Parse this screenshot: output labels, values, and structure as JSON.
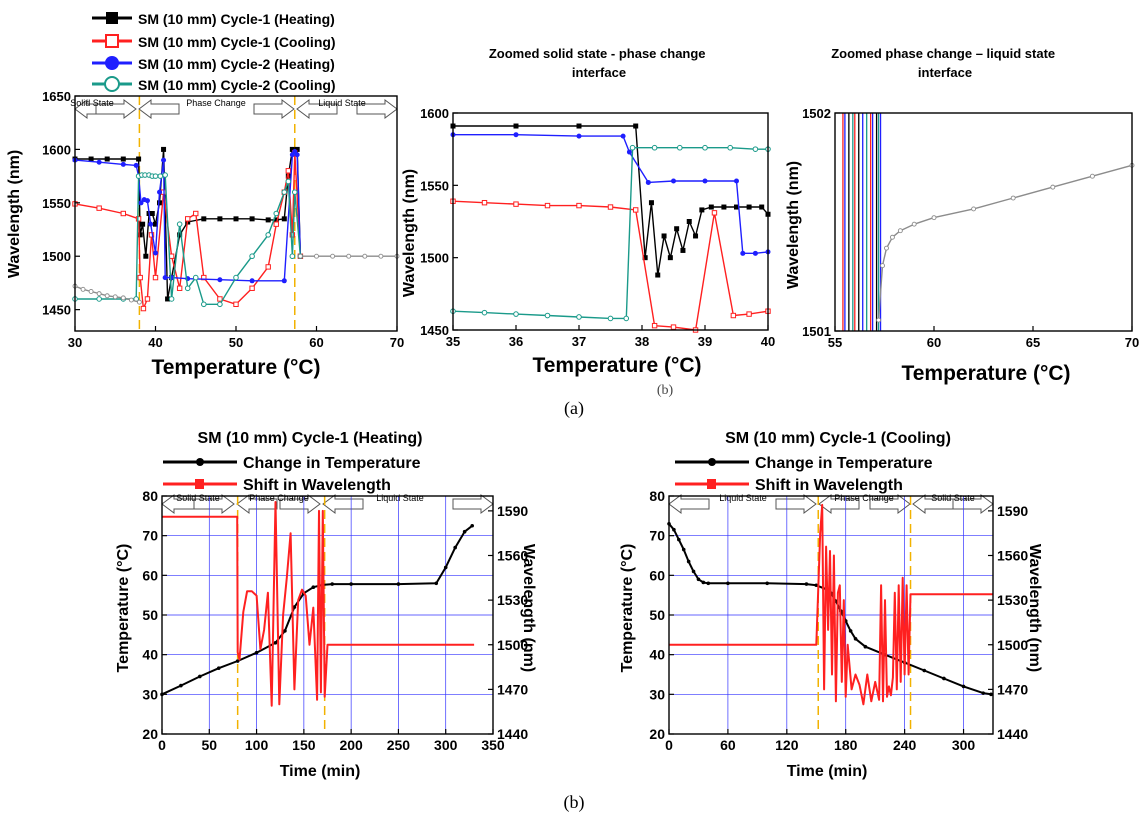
{
  "colors": {
    "black": "#000000",
    "red": "#ff2020",
    "blue": "#1f1fff",
    "teal": "#1a9a8a",
    "grey": "#8c8c8c",
    "yellow": "#f2b200",
    "grid": "#3333ff"
  },
  "panel_captions": {
    "a": "(a)",
    "b": "(b)",
    "stray": "(b)"
  },
  "top_legend": [
    {
      "label": "SM (10 mm) Cycle-1 (Heating)",
      "color": "#000000",
      "marker": "filled-square"
    },
    {
      "label": "SM (10 mm) Cycle-1 (Cooling)",
      "color": "#ff2020",
      "marker": "open-square"
    },
    {
      "label": "SM (10 mm) Cycle-2 (Heating)",
      "color": "#1f1fff",
      "marker": "filled-circle"
    },
    {
      "label": "SM (10 mm) Cycle-2 (Cooling)",
      "color": "#1a9a8a",
      "marker": "open-circle"
    }
  ],
  "chart_data": [
    {
      "id": "a1",
      "type": "line",
      "xlabel": "Temperature (°C)",
      "ylabel": "Wavelength (nm)",
      "xlim": [
        30,
        70
      ],
      "ylim": [
        1430,
        1650
      ],
      "xticks": [
        30,
        40,
        50,
        60,
        70
      ],
      "yticks": [
        1450,
        1500,
        1550,
        1600,
        1650
      ],
      "grid": false,
      "phase_annotations": [
        "Solid State",
        "Phase Change",
        "Liquid State"
      ],
      "phase_boundaries_x": [
        38,
        57.3
      ],
      "series": [
        {
          "name": "SM (10 mm) Cycle-1 (Heating)",
          "color": "#000000",
          "x": [
            30,
            32,
            34,
            36,
            37.9,
            38.1,
            38.4,
            38.8,
            39.2,
            39.6,
            40,
            40.5,
            41,
            41.5,
            42,
            43,
            44,
            46,
            48,
            50,
            52,
            54,
            55,
            56,
            56.5,
            57,
            57.3,
            57.6,
            58
          ],
          "y": [
            1591,
            1591,
            1591,
            1591,
            1591,
            1520,
            1530,
            1500,
            1540,
            1540,
            1530,
            1550,
            1600,
            1460,
            1480,
            1520,
            1532,
            1535,
            1535,
            1535,
            1535,
            1534,
            1534,
            1535,
            1575,
            1600,
            1597,
            1600,
            1500
          ]
        },
        {
          "name": "SM (10 mm) Cycle-1 (Cooling)",
          "color": "#ff2020",
          "x": [
            30,
            33,
            36,
            37.9,
            38.1,
            38.5,
            39,
            39.5,
            40,
            41,
            42,
            43,
            44,
            45,
            46,
            48,
            50,
            52,
            54,
            55,
            56,
            56.5,
            57,
            57.3,
            58
          ],
          "y": [
            1549,
            1545,
            1540,
            1535,
            1480,
            1451,
            1460,
            1520,
            1480,
            1560,
            1500,
            1470,
            1535,
            1540,
            1480,
            1460,
            1455,
            1470,
            1490,
            1530,
            1560,
            1580,
            1520,
            1597,
            1500
          ]
        },
        {
          "name": "SM (10 mm) Cycle-2 (Heating)",
          "color": "#1f1fff",
          "x": [
            30,
            33,
            36,
            37.6,
            37.9,
            38.2,
            38.6,
            39,
            39.4,
            40,
            40.5,
            41,
            41.2,
            42,
            44,
            48,
            52,
            56,
            57,
            57.3,
            57.6,
            58
          ],
          "y": [
            1590,
            1588,
            1586,
            1585,
            1575,
            1550,
            1553,
            1552,
            1530,
            1503,
            1560,
            1590,
            1480,
            1480,
            1479,
            1478,
            1477,
            1477,
            1595,
            1598,
            1595,
            1500
          ]
        },
        {
          "name": "SM (10 mm) Cycle-2 (Cooling)",
          "color": "#1a9a8a",
          "x": [
            30,
            33,
            36,
            37.6,
            37.9,
            38.3,
            38.7,
            39.2,
            39.6,
            40,
            40.6,
            41.2,
            42,
            43,
            44,
            45,
            46,
            48,
            50,
            52,
            54,
            55,
            56,
            56.5,
            57,
            57.3,
            58
          ],
          "y": [
            1460,
            1460,
            1460,
            1460,
            1575,
            1576,
            1576,
            1576,
            1575,
            1575,
            1575,
            1576,
            1460,
            1530,
            1470,
            1480,
            1455,
            1455,
            1480,
            1500,
            1520,
            1540,
            1560,
            1570,
            1500,
            1560,
            1500
          ]
        },
        {
          "name": "",
          "color": "#8c8c8c",
          "x": [
            30,
            31,
            32,
            33,
            34,
            35,
            36,
            37,
            38
          ],
          "y": [
            1472,
            1469,
            1467,
            1465,
            1463,
            1462,
            1461,
            1459,
            1457
          ]
        },
        {
          "name": "",
          "color": "#8c8c8c",
          "x": [
            58,
            60,
            62,
            64,
            66,
            68,
            70
          ],
          "y": [
            1500,
            1500,
            1500,
            1500,
            1500,
            1500,
            1500
          ]
        }
      ]
    },
    {
      "id": "a2",
      "type": "line",
      "title": "Zoomed solid state - phase change interface",
      "xlabel": "Temperature (°C)",
      "ylabel": "Wavelength (nm)",
      "xlim": [
        35,
        40
      ],
      "ylim": [
        1450,
        1600
      ],
      "xticks": [
        35,
        36,
        37,
        38,
        39,
        40
      ],
      "yticks": [
        1450,
        1500,
        1550,
        1600
      ],
      "grid": false,
      "series": [
        {
          "name": "SM (10 mm) Cycle-1 (Heating)",
          "color": "#000000",
          "x": [
            35,
            36,
            37,
            37.9,
            38.05,
            38.15,
            38.25,
            38.35,
            38.45,
            38.55,
            38.65,
            38.75,
            38.85,
            38.95,
            39.1,
            39.3,
            39.5,
            39.7,
            39.9,
            40
          ],
          "y": [
            1591,
            1591,
            1591,
            1591,
            1500,
            1538,
            1488,
            1515,
            1500,
            1520,
            1505,
            1525,
            1515,
            1533,
            1535,
            1535,
            1535,
            1535,
            1535,
            1530
          ]
        },
        {
          "name": "SM (10 mm) Cycle-1 (Cooling)",
          "color": "#ff2020",
          "x": [
            35,
            35.5,
            36,
            36.5,
            37,
            37.5,
            37.9,
            38.2,
            38.5,
            38.85,
            39.15,
            39.45,
            39.7,
            40
          ],
          "y": [
            1539,
            1538,
            1537,
            1536,
            1536,
            1535,
            1533,
            1453,
            1452,
            1450,
            1531,
            1460,
            1461,
            1463
          ]
        },
        {
          "name": "SM (10 mm) Cycle-2 (Heating)",
          "color": "#1f1fff",
          "x": [
            35,
            36,
            37,
            37.7,
            37.8,
            38.1,
            38.5,
            39,
            39.5,
            39.6,
            39.8,
            40
          ],
          "y": [
            1585,
            1585,
            1584,
            1584,
            1573,
            1552,
            1553,
            1553,
            1553,
            1503,
            1503,
            1504
          ]
        },
        {
          "name": "SM (10 mm) Cycle-2 (Cooling)",
          "color": "#1a9a8a",
          "x": [
            35,
            35.5,
            36,
            36.5,
            37,
            37.5,
            37.75,
            37.85,
            38.2,
            38.6,
            39,
            39.4,
            39.8,
            40
          ],
          "y": [
            1463,
            1462,
            1461,
            1460,
            1459,
            1458,
            1458,
            1576,
            1576,
            1576,
            1576,
            1576,
            1575,
            1575
          ]
        }
      ]
    },
    {
      "id": "a3",
      "type": "line",
      "title": "Zoomed phase change – liquid state interface",
      "xlabel": "Temperature (°C)",
      "ylabel": "Wavelength (nm)",
      "xlim": [
        55,
        70
      ],
      "ylim": [
        1501,
        1502
      ],
      "xticks": [
        55,
        60,
        65,
        70
      ],
      "yticks": [
        1501,
        1502
      ],
      "grid": false,
      "vertical_traces_x": [
        55.4,
        55.5,
        55.7,
        55.9,
        56.0,
        56.2,
        56.4,
        56.6,
        56.8,
        56.9,
        57.1,
        57.2,
        57.3
      ],
      "series": [
        {
          "name": "",
          "color": "#8c8c8c",
          "x": [
            57.2,
            57.4,
            57.6,
            57.9,
            58.3,
            59,
            60,
            62,
            64,
            66,
            68,
            70
          ],
          "y": [
            1501.05,
            1501.3,
            1501.38,
            1501.43,
            1501.46,
            1501.49,
            1501.52,
            1501.56,
            1501.61,
            1501.66,
            1501.71,
            1501.76
          ]
        }
      ]
    },
    {
      "id": "b1",
      "type": "line",
      "title": "SM (10 mm) Cycle-1 (Heating)",
      "xlabel": "Time (min)",
      "ylabel": "Temperature (°C)",
      "y2label": "Wavelength (nm)",
      "xlim": [
        0,
        350
      ],
      "ylim": [
        20,
        80
      ],
      "y2lim": [
        1440,
        1600
      ],
      "xticks": [
        0,
        50,
        100,
        150,
        200,
        250,
        300,
        350
      ],
      "yticks": [
        20,
        30,
        40,
        50,
        60,
        70,
        80
      ],
      "y2ticks": [
        1440,
        1470,
        1500,
        1530,
        1560,
        1590
      ],
      "grid": true,
      "phase_annotations": [
        "Solid State",
        "Phase Change",
        "Liquid State"
      ],
      "phase_boundaries_x": [
        80,
        172
      ],
      "series": [
        {
          "name": "Change in Temperature",
          "axis": "left",
          "color": "#000000",
          "x": [
            0,
            20,
            40,
            60,
            80,
            100,
            120,
            130,
            140,
            150,
            160,
            170,
            180,
            200,
            250,
            290,
            300,
            310,
            320,
            328
          ],
          "y": [
            30,
            32.2,
            34.5,
            36.6,
            38.4,
            40.5,
            43,
            46,
            52,
            55.5,
            57,
            57.6,
            57.8,
            57.8,
            57.8,
            58,
            62,
            67,
            71,
            72.5
          ]
        },
        {
          "name": "Shift in Wavelength",
          "axis": "right",
          "color": "#ff2020",
          "x": [
            0,
            40,
            79.5,
            80,
            82,
            86,
            90,
            95,
            100,
            104,
            108,
            112,
            116,
            120,
            124,
            128,
            132,
            136,
            140,
            144,
            148,
            152,
            156,
            160,
            164,
            166,
            168,
            170,
            172,
            175,
            200,
            250,
            300,
            330
          ],
          "y": [
            1586,
            1586,
            1586,
            1495,
            1490,
            1522,
            1536,
            1536,
            1533,
            1497,
            1510,
            1535,
            1459,
            1596,
            1460,
            1520,
            1545,
            1575,
            1470,
            1530,
            1537,
            1533,
            1500,
            1525,
            1463,
            1590,
            1468,
            1590,
            1465,
            1500,
            1500,
            1500,
            1500,
            1500
          ]
        }
      ]
    },
    {
      "id": "b2",
      "type": "line",
      "title": "SM (10 mm) Cycle-1 (Cooling)",
      "xlabel": "Time (min)",
      "ylabel": "Temperature (°C)",
      "y2label": "Wavelength (nm)",
      "xlim": [
        0,
        330
      ],
      "ylim": [
        20,
        80
      ],
      "y2lim": [
        1440,
        1600
      ],
      "xticks": [
        0,
        60,
        120,
        180,
        240,
        300
      ],
      "yticks": [
        20,
        30,
        40,
        50,
        60,
        70,
        80
      ],
      "y2ticks": [
        1440,
        1470,
        1500,
        1530,
        1560,
        1590
      ],
      "grid": true,
      "phase_annotations": [
        "Liquid State",
        "Phase Change",
        "Solid State"
      ],
      "phase_boundaries_x": [
        152,
        246
      ],
      "series": [
        {
          "name": "Change in Temperature",
          "axis": "left",
          "color": "#000000",
          "x": [
            0,
            5,
            10,
            15,
            20,
            25,
            30,
            35,
            40,
            60,
            100,
            140,
            150,
            160,
            165,
            170,
            175,
            180,
            185,
            190,
            200,
            220,
            240,
            260,
            280,
            300,
            320,
            328
          ],
          "y": [
            73,
            71.5,
            69,
            66.5,
            63.5,
            61,
            59,
            58.2,
            58,
            58,
            58,
            57.8,
            57.5,
            56.5,
            55.5,
            53.5,
            51,
            48.5,
            46,
            44,
            42,
            40,
            38,
            36,
            34,
            32,
            30.3,
            30
          ]
        },
        {
          "name": "Shift in Wavelength",
          "axis": "right",
          "color": "#ff2020",
          "x": [
            0,
            50,
            100,
            150,
            154,
            156,
            158,
            160,
            162,
            164,
            166,
            168,
            170,
            172,
            174,
            176,
            178,
            180,
            182,
            186,
            190,
            194,
            198,
            202,
            206,
            210,
            214,
            216,
            218,
            220,
            222,
            224,
            226,
            228,
            230,
            232,
            234,
            236,
            238,
            240,
            242,
            244,
            246,
            250,
            280,
            330
          ],
          "y": [
            1500,
            1500,
            1500,
            1500,
            1575,
            1594,
            1470,
            1566,
            1510,
            1563,
            1480,
            1560,
            1462,
            1535,
            1540,
            1475,
            1530,
            1465,
            1500,
            1470,
            1480,
            1473,
            1460,
            1480,
            1462,
            1475,
            1463,
            1540,
            1462,
            1530,
            1465,
            1472,
            1466,
            1478,
            1535,
            1470,
            1540,
            1475,
            1545,
            1480,
            1540,
            1480,
            1534,
            1534,
            1534,
            1534
          ]
        }
      ]
    }
  ]
}
